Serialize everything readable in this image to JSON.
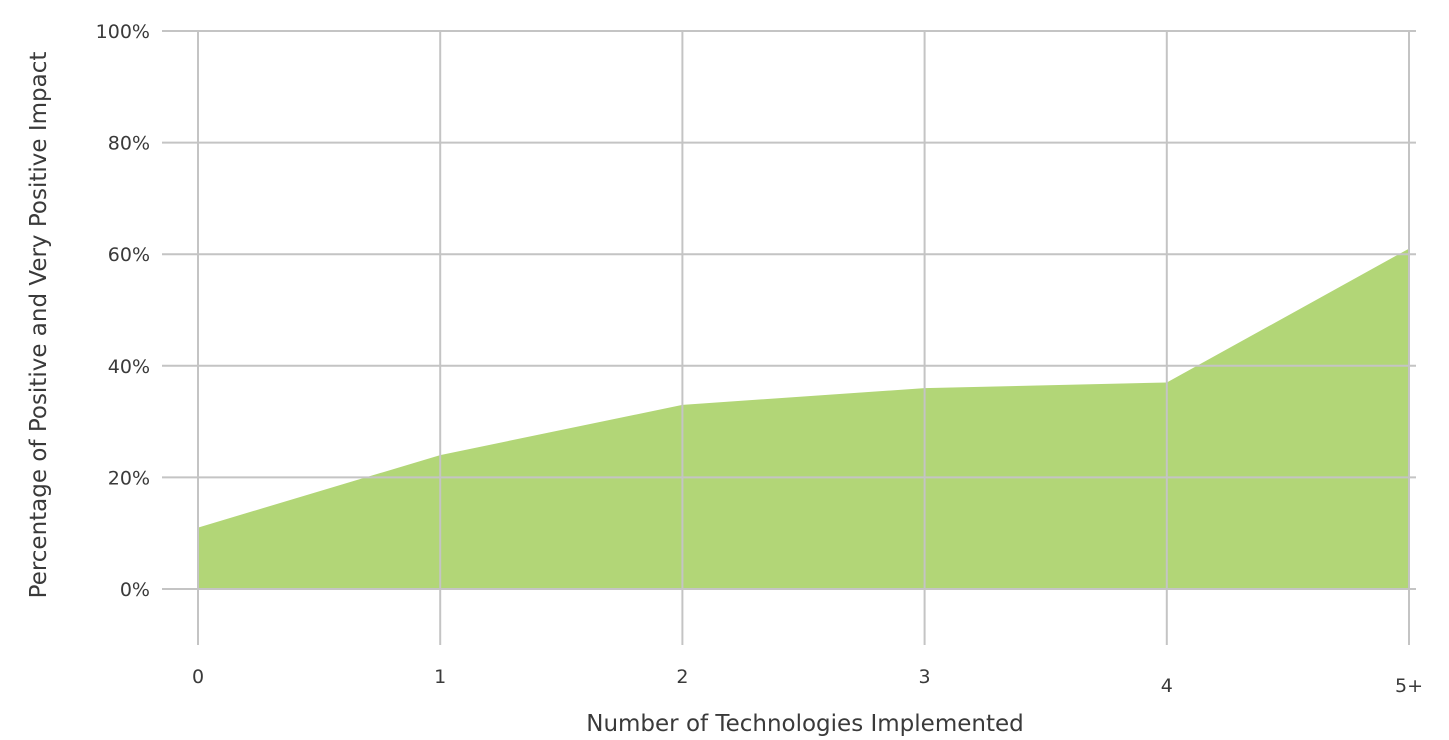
{
  "chart_data": {
    "type": "area",
    "title": "",
    "xlabel": "Number of Technologies Implemented",
    "ylabel": "Percentage of Positive and Very Positive Impact",
    "categories": [
      "0",
      "1",
      "2",
      "3",
      "4",
      "5+"
    ],
    "series": [
      {
        "values": [
          11,
          24,
          33,
          36,
          37,
          61
        ]
      }
    ],
    "yticks": [
      "0%",
      "20%",
      "40%",
      "60%",
      "80%",
      "100%"
    ],
    "ylim": [
      0,
      100
    ],
    "grid": true,
    "legend": "none",
    "colors": {
      "fill": "#b2d677",
      "grid": "#c4c4c4",
      "text": "#3a3a3a"
    }
  }
}
